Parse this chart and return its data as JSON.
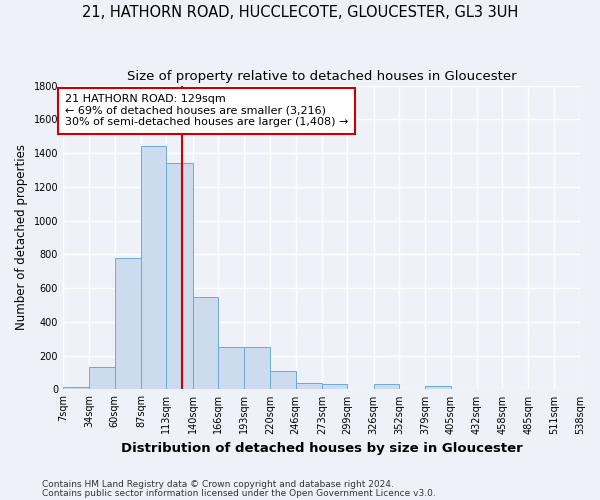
{
  "title1": "21, HATHORN ROAD, HUCCLECOTE, GLOUCESTER, GL3 3UH",
  "title2": "Size of property relative to detached houses in Gloucester",
  "xlabel": "Distribution of detached houses by size in Gloucester",
  "ylabel": "Number of detached properties",
  "bin_edges": [
    7,
    34,
    60,
    87,
    113,
    140,
    166,
    193,
    220,
    246,
    273,
    299,
    326,
    352,
    379,
    405,
    432,
    458,
    485,
    511,
    538
  ],
  "bar_heights": [
    15,
    130,
    780,
    1440,
    1340,
    550,
    250,
    250,
    110,
    40,
    30,
    0,
    30,
    0,
    20,
    0,
    0,
    0,
    0,
    0
  ],
  "bar_color": "#ccdcee",
  "bar_edgecolor": "#6aaad4",
  "property_size": 129,
  "red_line_color": "#cc0000",
  "annotation_line1": "21 HATHORN ROAD: 129sqm",
  "annotation_line2": "← 69% of detached houses are smaller (3,216)",
  "annotation_line3": "30% of semi-detached houses are larger (1,408) →",
  "annotation_box_color": "#ffffff",
  "annotation_box_edgecolor": "#cc0000",
  "ylim": [
    0,
    1800
  ],
  "tick_labels": [
    "7sqm",
    "34sqm",
    "60sqm",
    "87sqm",
    "113sqm",
    "140sqm",
    "166sqm",
    "193sqm",
    "220sqm",
    "246sqm",
    "273sqm",
    "299sqm",
    "326sqm",
    "352sqm",
    "379sqm",
    "405sqm",
    "432sqm",
    "458sqm",
    "485sqm",
    "511sqm",
    "538sqm"
  ],
  "footer1": "Contains HM Land Registry data © Crown copyright and database right 2024.",
  "footer2": "Contains public sector information licensed under the Open Government Licence v3.0.",
  "background_color": "#eef2f8",
  "grid_color": "#ffffff",
  "title1_fontsize": 10.5,
  "title2_fontsize": 9.5,
  "ylabel_fontsize": 8.5,
  "xlabel_fontsize": 9.5,
  "tick_fontsize": 7,
  "annotation_fontsize": 8,
  "footer_fontsize": 6.5
}
